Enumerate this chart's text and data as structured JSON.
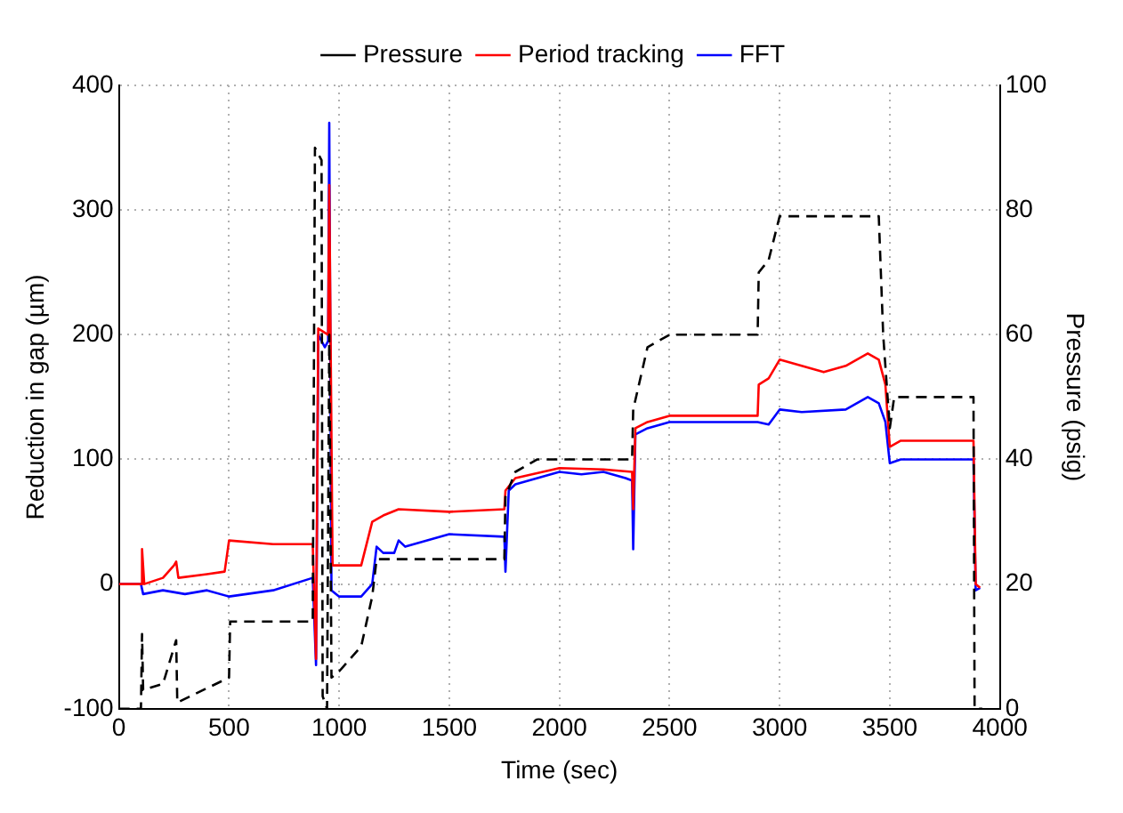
{
  "chart_data": {
    "type": "line",
    "xlabel": "Time (sec)",
    "ylabel": "Reduction in gap (µm)",
    "y2label": "Pressure (psig)",
    "xlim": [
      0,
      4000
    ],
    "xticks": [
      0,
      500,
      1000,
      1500,
      2000,
      2500,
      3000,
      3500,
      4000
    ],
    "ylim": [
      -100,
      400
    ],
    "yticks": [
      -100,
      0,
      100,
      200,
      300,
      400
    ],
    "y2lim": [
      0,
      100
    ],
    "y2ticks": [
      0,
      20,
      40,
      60,
      80,
      100
    ],
    "grid": true,
    "legend": "top",
    "marker": "none",
    "series": [
      {
        "name": "FFT",
        "color": "#0000ff",
        "line_style": "solid",
        "x": [
          0,
          100,
          110,
          200,
          300,
          400,
          500,
          700,
          880,
          895,
          905,
          935,
          950,
          955,
          965,
          1000,
          1100,
          1150,
          1170,
          1200,
          1250,
          1270,
          1300,
          1500,
          1750,
          1755,
          1770,
          1800,
          1900,
          2000,
          2100,
          2200,
          2300,
          2330,
          2335,
          2345,
          2400,
          2500,
          2600,
          2900,
          2950,
          3000,
          3100,
          3300,
          3400,
          3450,
          3480,
          3500,
          3550,
          3600,
          3880,
          3890,
          3910
        ],
        "values": [
          0,
          0,
          -8,
          -5,
          -8,
          -5,
          -10,
          -5,
          5,
          -65,
          200,
          190,
          195,
          370,
          -5,
          -10,
          -10,
          0,
          30,
          25,
          25,
          35,
          30,
          40,
          38,
          10,
          75,
          80,
          85,
          90,
          88,
          90,
          85,
          83,
          28,
          120,
          125,
          130,
          130,
          130,
          128,
          140,
          138,
          140,
          150,
          145,
          130,
          97,
          100,
          100,
          100,
          -5,
          -3
        ]
      },
      {
        "name": "Period tracking",
        "color": "#ff0000",
        "line_style": "solid",
        "x": [
          0,
          100,
          105,
          115,
          200,
          250,
          260,
          270,
          400,
          480,
          500,
          700,
          880,
          895,
          905,
          950,
          955,
          970,
          1000,
          1100,
          1150,
          1200,
          1270,
          1500,
          1750,
          1755,
          1800,
          2000,
          2200,
          2330,
          2335,
          2345,
          2400,
          2500,
          2900,
          2905,
          2950,
          3000,
          3100,
          3200,
          3300,
          3400,
          3450,
          3480,
          3500,
          3550,
          3880,
          3890,
          3910
        ],
        "values": [
          0,
          0,
          28,
          0,
          5,
          15,
          18,
          5,
          8,
          10,
          35,
          32,
          32,
          -60,
          205,
          200,
          320,
          15,
          15,
          15,
          50,
          55,
          60,
          58,
          60,
          75,
          85,
          93,
          92,
          90,
          60,
          125,
          130,
          135,
          135,
          160,
          165,
          180,
          175,
          170,
          175,
          185,
          180,
          160,
          110,
          115,
          115,
          0,
          -3
        ]
      },
      {
        "name": "Pressure",
        "color": "#000000",
        "line_style": "dashed",
        "axis": "y2",
        "x": [
          0,
          100,
          105,
          110,
          200,
          260,
          265,
          500,
          505,
          880,
          890,
          920,
          925,
          945,
          955,
          965,
          1000,
          1100,
          1150,
          1170,
          1500,
          1750,
          1755,
          1800,
          1900,
          2330,
          2335,
          2400,
          2500,
          2900,
          2905,
          2950,
          3000,
          3450,
          3470,
          3500,
          3520,
          3880,
          3885,
          3920
        ],
        "values": [
          0,
          0,
          12,
          3,
          4,
          11,
          1,
          5,
          14,
          14,
          90,
          88,
          2,
          0,
          60,
          5,
          6,
          10,
          18,
          24,
          24,
          24,
          34,
          38,
          40,
          40,
          48,
          58,
          60,
          60,
          70,
          72,
          79,
          79,
          60,
          45,
          50,
          50,
          0,
          0
        ]
      }
    ]
  }
}
